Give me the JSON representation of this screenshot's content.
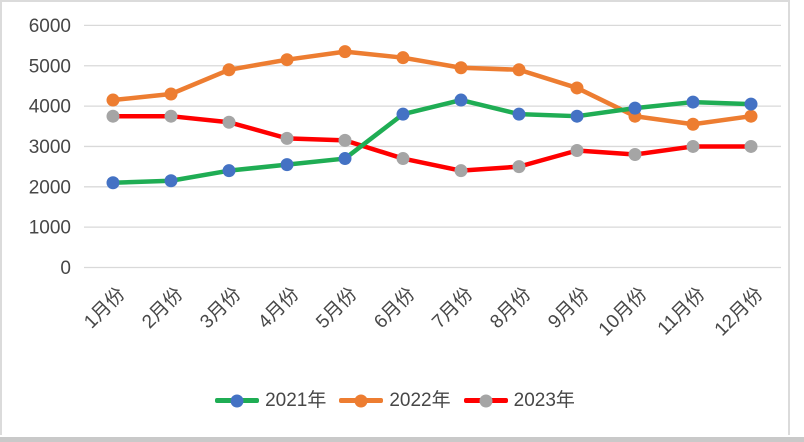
{
  "chart_data": {
    "type": "line",
    "categories": [
      "1月份",
      "2月份",
      "3月份",
      "4月份",
      "5月份",
      "6月份",
      "7月份",
      "8月份",
      "9月份",
      "10月份",
      "11月份",
      "12月份"
    ],
    "series": [
      {
        "name": "2021年",
        "line_color": "#1FAD54",
        "marker_color": "#4472C4",
        "values": [
          2100,
          2150,
          2400,
          2550,
          2700,
          3800,
          4150,
          3800,
          3750,
          3950,
          4100,
          4050
        ]
      },
      {
        "name": "2022年",
        "line_color": "#ED7D31",
        "marker_color": "#ED7D31",
        "values": [
          4150,
          4300,
          4900,
          5150,
          5350,
          5200,
          4950,
          4900,
          4450,
          3750,
          3550,
          3750
        ]
      },
      {
        "name": "2023年",
        "line_color": "#FF0000",
        "marker_color": "#A5A5A5",
        "values": [
          3750,
          3750,
          3600,
          3200,
          3150,
          2700,
          2400,
          2500,
          2900,
          2800,
          3000,
          3000
        ]
      }
    ],
    "ylim": [
      0,
      6000
    ],
    "ytick_step": 1000,
    "ytick_labels": [
      "0",
      "1000",
      "2000",
      "3000",
      "4000",
      "5000",
      "6000"
    ],
    "grid": "horizontal",
    "legend_position": "bottom",
    "colors": {
      "gridline": "#D9D9D9",
      "tick_label": "#474747",
      "frame_border": "#DBDBDB",
      "bottom_bar": "#C9C9C9"
    }
  }
}
